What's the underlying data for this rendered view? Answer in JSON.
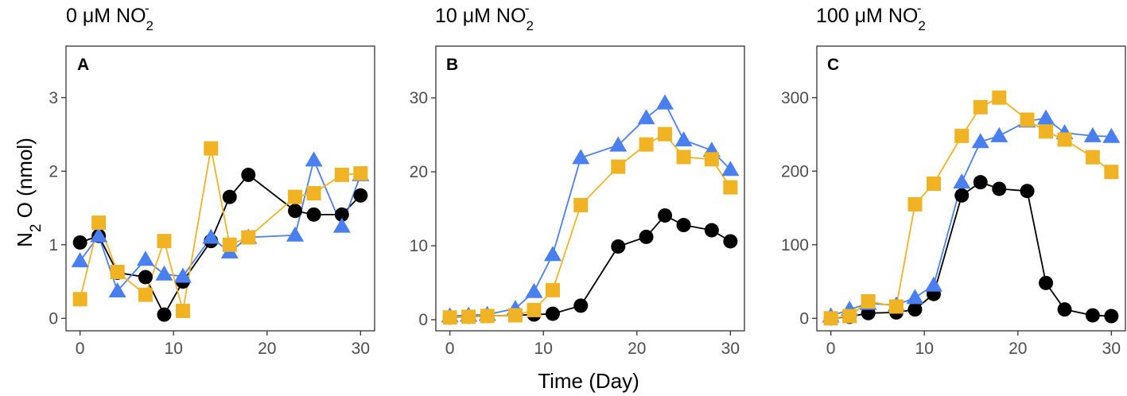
{
  "figure": {
    "ylabel": {
      "main": "N",
      "sub": "2",
      "rest": " O (nmol)"
    },
    "xlabel": "Time (Day)"
  },
  "chart_data": [
    {
      "type": "line",
      "letter": "A",
      "title": {
        "main": "0 μM NO",
        "sub": "2",
        "sup": "-"
      },
      "xlim": [
        -1.5,
        31.5
      ],
      "ylim": [
        -0.17,
        3.7
      ],
      "xticks": [
        0,
        10,
        20,
        30
      ],
      "yticks": [
        0,
        1,
        2,
        3
      ],
      "series": [
        {
          "name": "black-circle",
          "color": "#000000",
          "marker": "circle",
          "x": [
            0,
            2,
            4,
            7,
            9,
            11,
            14,
            16,
            18,
            23,
            25,
            28,
            30
          ],
          "y": [
            1.03,
            1.12,
            0.62,
            0.56,
            0.05,
            0.5,
            1.05,
            1.65,
            1.95,
            1.46,
            1.41,
            1.41,
            1.67
          ]
        },
        {
          "name": "blue-triangle",
          "color": "#4a7ff0",
          "marker": "triangle",
          "x": [
            0,
            2,
            4,
            7,
            9,
            11,
            14,
            16,
            18,
            23,
            25,
            28,
            30
          ],
          "y": [
            0.78,
            1.12,
            0.37,
            0.8,
            0.6,
            0.57,
            1.1,
            0.9,
            1.1,
            1.13,
            2.15,
            1.25,
            1.95
          ]
        },
        {
          "name": "orange-square",
          "color": "#f0b323",
          "marker": "square",
          "x": [
            0,
            2,
            4,
            7,
            9,
            11,
            14,
            16,
            18,
            23,
            25,
            28,
            30
          ],
          "y": [
            0.26,
            1.3,
            0.63,
            0.32,
            1.05,
            0.1,
            2.31,
            1.0,
            1.1,
            1.65,
            1.7,
            1.95,
            1.97
          ]
        }
      ]
    },
    {
      "type": "line",
      "letter": "B",
      "title": {
        "main": "10 μM NO",
        "sub": "2",
        "sup": "-"
      },
      "xlim": [
        -1.5,
        31.5
      ],
      "ylim": [
        -1.5,
        37
      ],
      "xticks": [
        0,
        10,
        20,
        30
      ],
      "yticks": [
        0,
        10,
        20,
        30
      ],
      "series": [
        {
          "name": "black-circle",
          "color": "#000000",
          "marker": "circle",
          "x": [
            0,
            2,
            4,
            7,
            9,
            11,
            14,
            18,
            21,
            23,
            25,
            28,
            30
          ],
          "y": [
            0.3,
            0.4,
            0.5,
            0.6,
            0.7,
            0.8,
            1.9,
            9.9,
            11.2,
            14.1,
            12.8,
            12.1,
            10.6
          ]
        },
        {
          "name": "blue-triangle",
          "color": "#4a7ff0",
          "marker": "triangle",
          "x": [
            0,
            2,
            4,
            7,
            9,
            11,
            14,
            18,
            21,
            23,
            25,
            28,
            30
          ],
          "y": [
            0.5,
            0.6,
            0.7,
            1.5,
            3.8,
            8.8,
            21.9,
            23.6,
            27.3,
            29.3,
            24.3,
            22.9,
            20.3
          ]
        },
        {
          "name": "orange-square",
          "color": "#f0b323",
          "marker": "square",
          "x": [
            0,
            2,
            4,
            7,
            9,
            11,
            14,
            18,
            21,
            23,
            25,
            28,
            30
          ],
          "y": [
            0.3,
            0.4,
            0.5,
            0.6,
            1.3,
            4.0,
            15.5,
            20.7,
            23.7,
            25.1,
            22.0,
            21.7,
            17.9
          ]
        }
      ]
    },
    {
      "type": "line",
      "letter": "C",
      "title": {
        "main": "100 μM NO",
        "sub": "2",
        "sup": "-"
      },
      "xlim": [
        -1.5,
        31.5
      ],
      "ylim": [
        -17,
        370
      ],
      "xticks": [
        0,
        10,
        20,
        30
      ],
      "yticks": [
        0,
        100,
        200,
        300
      ],
      "series": [
        {
          "name": "black-circle",
          "color": "#000000",
          "marker": "circle",
          "x": [
            0,
            2,
            4,
            7,
            9,
            11,
            14,
            16,
            18,
            21,
            23,
            25,
            28,
            30
          ],
          "y": [
            0,
            2,
            7,
            8,
            12,
            33,
            167,
            185,
            176,
            173,
            48,
            12,
            4,
            3
          ]
        },
        {
          "name": "blue-triangle",
          "color": "#4a7ff0",
          "marker": "triangle",
          "x": [
            0,
            2,
            4,
            7,
            9,
            11,
            14,
            16,
            18,
            21,
            23,
            25,
            28,
            30
          ],
          "y": [
            3,
            12,
            20,
            18,
            28,
            45,
            185,
            240,
            248,
            268,
            272,
            252,
            248,
            247
          ]
        },
        {
          "name": "orange-square",
          "color": "#f0b323",
          "marker": "square",
          "x": [
            0,
            2,
            4,
            7,
            9,
            11,
            14,
            16,
            18,
            21,
            23,
            25,
            28,
            30
          ],
          "y": [
            0,
            3,
            23,
            16,
            155,
            183,
            248,
            287,
            300,
            270,
            254,
            243,
            219,
            199
          ]
        }
      ]
    }
  ]
}
